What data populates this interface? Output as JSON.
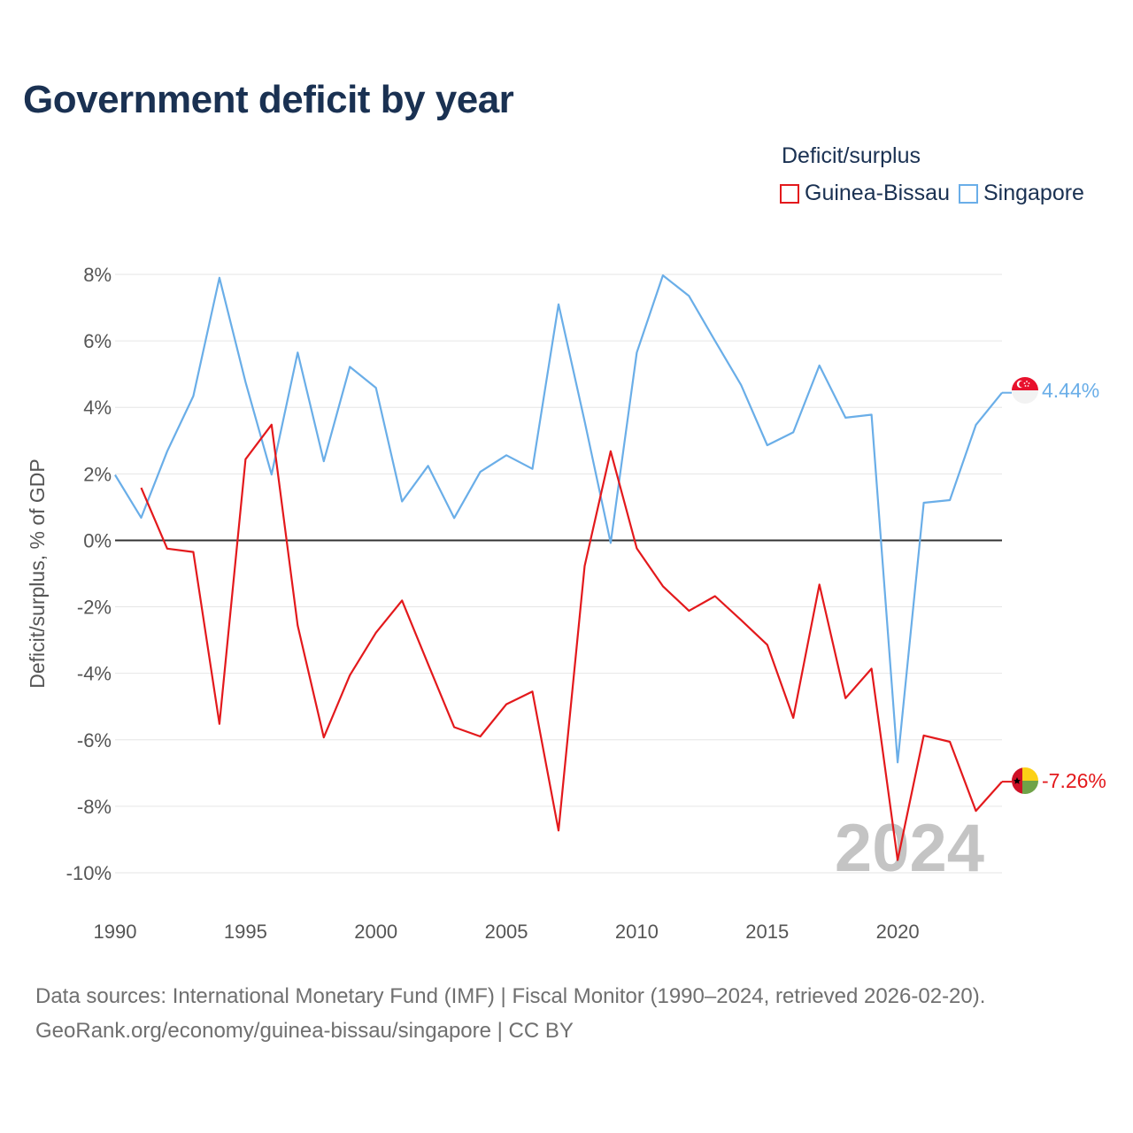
{
  "title": "Government deficit by year",
  "legend": {
    "title": "Deficit/surplus",
    "items": [
      {
        "label": "Guinea-Bissau",
        "color": "#e3191c"
      },
      {
        "label": "Singapore",
        "color": "#6aaee8"
      }
    ]
  },
  "source": {
    "line1": "Data sources: International Monetary Fund (IMF) | Fiscal Monitor (1990–2024, retrieved 2026-02-20).",
    "line2": "GeoRank.org/economy/guinea-bissau/singapore | CC BY"
  },
  "chart_data": {
    "type": "line",
    "title": "Government deficit by year",
    "xlabel": "",
    "ylabel": "Deficit/surplus, % of GDP",
    "xlim": [
      1990,
      2024
    ],
    "ylim": [
      -10,
      8
    ],
    "x_ticks": [
      1990,
      1995,
      2000,
      2005,
      2010,
      2015,
      2020
    ],
    "x_tick_labels": [
      "1990",
      "1995",
      "2000",
      "2005",
      "2010",
      "2015",
      "2020"
    ],
    "y_ticks": [
      8,
      6,
      4,
      2,
      0,
      -2,
      -4,
      -6,
      -8,
      -10
    ],
    "y_tick_labels": [
      "8%",
      "6%",
      "4%",
      "2%",
      "0%",
      "-2%",
      "-4%",
      "-6%",
      "-8%",
      "-10%"
    ],
    "watermark_year": "2024",
    "grid": true,
    "legend_position": "top-right",
    "series": [
      {
        "name": "Singapore",
        "color": "#6aaee8",
        "end_label": "4.44%",
        "flag": "singapore-flag-icon",
        "x": [
          1990,
          1991,
          1992,
          1993,
          1994,
          1995,
          1996,
          1997,
          1998,
          1999,
          2000,
          2001,
          2002,
          2003,
          2004,
          2005,
          2006,
          2007,
          2008,
          2009,
          2010,
          2011,
          2012,
          2013,
          2014,
          2015,
          2016,
          2017,
          2018,
          2019,
          2020,
          2021,
          2022,
          2023,
          2024
        ],
        "values": [
          1.97,
          0.68,
          2.68,
          4.34,
          7.9,
          4.76,
          1.98,
          5.65,
          2.38,
          5.22,
          4.59,
          1.17,
          2.24,
          0.67,
          2.06,
          2.56,
          2.15,
          7.1,
          3.58,
          -0.08,
          5.65,
          7.97,
          7.35,
          6.0,
          4.67,
          2.86,
          3.25,
          5.26,
          3.69,
          3.78,
          -6.68,
          1.13,
          1.21,
          3.47,
          4.44
        ]
      },
      {
        "name": "Guinea-Bissau",
        "color": "#e3191c",
        "end_label": "-7.26%",
        "flag": "guinea-bissau-flag-icon",
        "x": [
          1991,
          1992,
          1993,
          1994,
          1995,
          1996,
          1997,
          1998,
          1999,
          2000,
          2001,
          2002,
          2003,
          2004,
          2005,
          2006,
          2007,
          2008,
          2009,
          2010,
          2011,
          2012,
          2013,
          2014,
          2015,
          2016,
          2017,
          2018,
          2019,
          2020,
          2021,
          2022,
          2023,
          2024
        ],
        "values": [
          1.58,
          -0.25,
          -0.35,
          -5.52,
          2.44,
          3.48,
          -2.56,
          -5.93,
          -4.06,
          -2.78,
          -1.81,
          -3.72,
          -5.62,
          -5.9,
          -4.93,
          -4.55,
          -8.73,
          -0.77,
          2.68,
          -0.24,
          -1.38,
          -2.12,
          -1.68,
          -2.4,
          -3.14,
          -5.34,
          -1.33,
          -4.75,
          -3.86,
          -9.62,
          -5.87,
          -6.06,
          -8.14,
          -7.26
        ]
      }
    ]
  }
}
